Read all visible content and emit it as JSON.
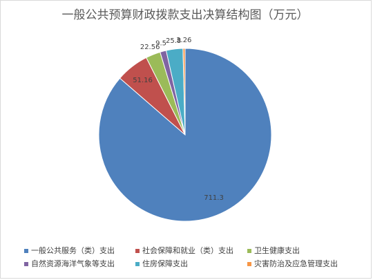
{
  "chart_data": {
    "type": "pie",
    "title": "一般公共预算财政拨款支出决算结构图（万元）",
    "categories": [
      "一般公共服务（类）支出",
      "社会保障和就业（类）支出",
      "卫生健康支出",
      "自然资源海洋气象等支出",
      "住房保障支出",
      "灾害防治及应急管理支出"
    ],
    "values": [
      711.3,
      51.16,
      22.56,
      9.5,
      25.8,
      3.26
    ],
    "colors": [
      "#4f81bd",
      "#c0504d",
      "#9bbb59",
      "#8064a2",
      "#4bacc6",
      "#f79646"
    ],
    "legend": "bottom"
  }
}
